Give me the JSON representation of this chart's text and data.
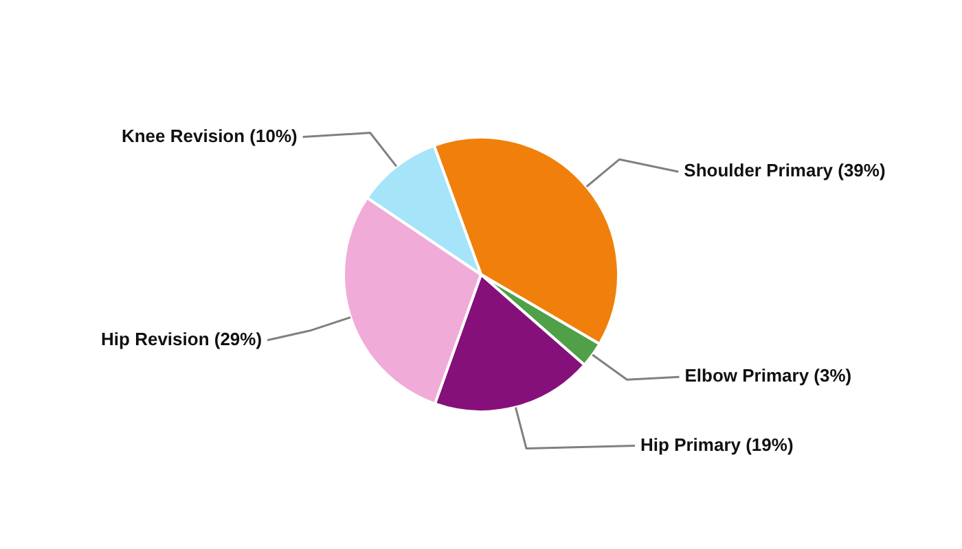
{
  "chart_data": {
    "type": "pie",
    "categories": [
      "Shoulder Primary",
      "Elbow Primary",
      "Hip Primary",
      "Hip Revision",
      "Knee Revision"
    ],
    "values": [
      39,
      3,
      19,
      29,
      10
    ],
    "value_labels": [
      "(39%)",
      "(3%)",
      "(19%)",
      "(29%)",
      "(10%)"
    ],
    "colors": [
      "#f0800b",
      "#4fa048",
      "#86107a",
      "#f1abd8",
      "#a6e4fa"
    ],
    "legend": false
  }
}
